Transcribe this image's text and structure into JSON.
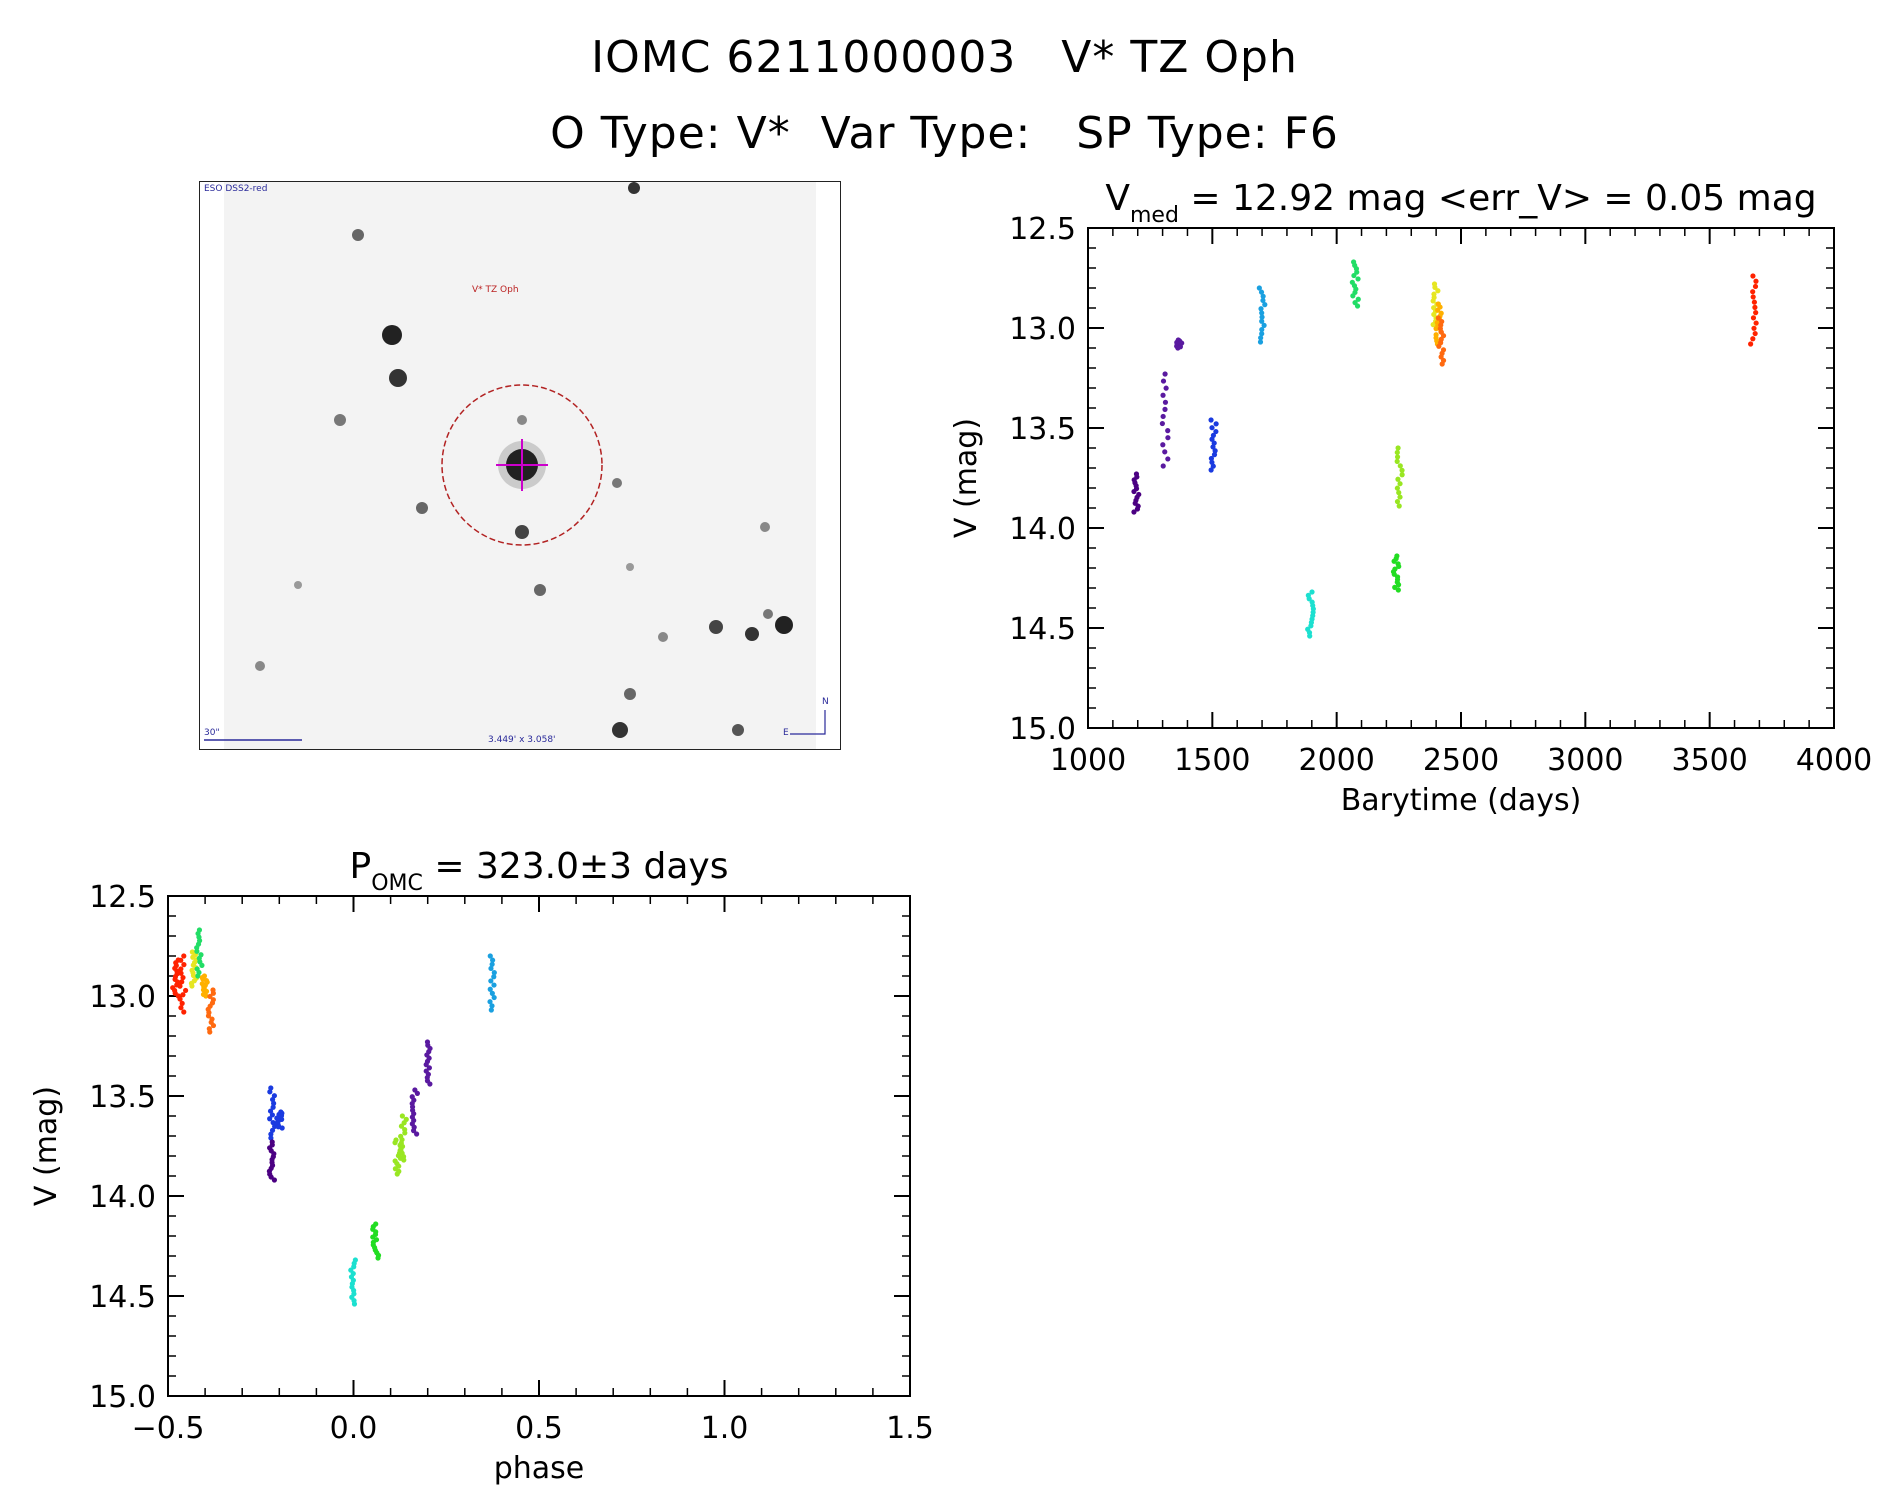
{
  "header": {
    "title_line1": "IOMC 6211000003   V* TZ Oph",
    "title_line2": "O Type: V*  Var Type:   SP Type: F6"
  },
  "image_panel": {
    "survey_label": "ESO DSS2-red",
    "target_label": "V* TZ Oph",
    "scale_label": "30\"",
    "fov_label": "3.449' x 3.058'",
    "north_label": "N",
    "east_label": "E"
  },
  "colors": {
    "axis": "#000000",
    "circle": "#b22222",
    "marker": "#cc00cc",
    "palette": [
      "#4b0082",
      "#5a1aa0",
      "#1a3be0",
      "#1aa0e0",
      "#1ce0d0",
      "#22dd66",
      "#22dd22",
      "#99e622",
      "#e6e622",
      "#ffb000",
      "#ff6a10",
      "#ff2200"
    ]
  },
  "chart_data": [
    {
      "type": "scatter",
      "title": "V",
      "title_sub": "med",
      "title_rest": " = 12.92 mag <err_V> = 0.05 mag",
      "xlabel": "Barytime (days)",
      "ylabel": "V (mag)",
      "xlim": [
        1000,
        4000
      ],
      "ylim": [
        15.0,
        12.5
      ],
      "y_inverted": true,
      "xticks": [
        "1000",
        "1500",
        "2000",
        "2500",
        "3000",
        "3500",
        "4000"
      ],
      "yticks": [
        "12.5",
        "13.0",
        "13.5",
        "14.0",
        "14.5",
        "15.0"
      ],
      "groups": [
        {
          "x": 1195,
          "ymin": 13.73,
          "ymax": 13.92,
          "color": "#4b0082"
        },
        {
          "x": 1310,
          "ymin": 13.23,
          "ymax": 13.69,
          "color": "#5a1aa0"
        },
        {
          "x": 1365,
          "ymin": 13.06,
          "ymax": 13.1,
          "color": "#5a1aa0"
        },
        {
          "x": 1505,
          "ymin": 13.46,
          "ymax": 13.71,
          "color": "#1a3be0"
        },
        {
          "x": 1700,
          "ymin": 12.8,
          "ymax": 13.07,
          "color": "#1aa0e0"
        },
        {
          "x": 1895,
          "ymin": 14.32,
          "ymax": 14.54,
          "color": "#1ce0d0"
        },
        {
          "x": 2075,
          "ymin": 12.67,
          "ymax": 12.89,
          "color": "#22dd66"
        },
        {
          "x": 2240,
          "ymin": 14.14,
          "ymax": 14.31,
          "color": "#22dd22"
        },
        {
          "x": 2255,
          "ymin": 13.6,
          "ymax": 13.89,
          "color": "#99e622"
        },
        {
          "x": 2400,
          "ymin": 12.78,
          "ymax": 13.0,
          "color": "#e6e622"
        },
        {
          "x": 2410,
          "ymin": 12.88,
          "ymax": 13.08,
          "color": "#ffb000"
        },
        {
          "x": 2420,
          "ymin": 12.95,
          "ymax": 13.18,
          "color": "#ff6a10"
        },
        {
          "x": 3675,
          "ymin": 12.74,
          "ymax": 13.08,
          "color": "#ff2200"
        }
      ]
    },
    {
      "type": "scatter",
      "title": "P",
      "title_sub": "OMC",
      "title_rest": " = 323.0±3 days",
      "xlabel": "phase",
      "ylabel": "V (mag)",
      "xlim": [
        -0.5,
        1.5
      ],
      "ylim": [
        15.0,
        12.5
      ],
      "y_inverted": true,
      "xticks": [
        "−0.5",
        "0.0",
        "0.5",
        "1.0",
        "1.5"
      ],
      "yticks": [
        "12.5",
        "13.0",
        "13.5",
        "14.0",
        "14.5",
        "15.0"
      ],
      "period_days": 323.0,
      "groups": [
        {
          "x": -0.48,
          "ymin": 12.82,
          "ymax": 13.0,
          "color": "#ff2200"
        },
        {
          "x": -0.46,
          "ymin": 12.8,
          "ymax": 13.08,
          "color": "#ff2200"
        },
        {
          "x": -0.43,
          "ymin": 12.78,
          "ymax": 12.95,
          "color": "#e6e622"
        },
        {
          "x": -0.415,
          "ymin": 12.67,
          "ymax": 12.9,
          "color": "#22dd66"
        },
        {
          "x": -0.4,
          "ymin": 12.9,
          "ymax": 13.0,
          "color": "#ffb000"
        },
        {
          "x": -0.385,
          "ymin": 12.97,
          "ymax": 13.18,
          "color": "#ff6a10"
        },
        {
          "x": -0.22,
          "ymin": 13.46,
          "ymax": 13.71,
          "color": "#1a3be0"
        },
        {
          "x": -0.22,
          "ymin": 13.73,
          "ymax": 13.92,
          "color": "#4b0082"
        },
        {
          "x": -0.2,
          "ymin": 13.58,
          "ymax": 13.66,
          "color": "#1a3be0"
        },
        {
          "x": 0.0,
          "ymin": 14.32,
          "ymax": 14.54,
          "color": "#1ce0d0"
        },
        {
          "x": 0.06,
          "ymin": 14.14,
          "ymax": 14.31,
          "color": "#22dd22"
        },
        {
          "x": 0.12,
          "ymin": 13.72,
          "ymax": 13.89,
          "color": "#99e622"
        },
        {
          "x": 0.135,
          "ymin": 13.6,
          "ymax": 13.82,
          "color": "#99e622"
        },
        {
          "x": 0.165,
          "ymin": 13.47,
          "ymax": 13.69,
          "color": "#5a1aa0"
        },
        {
          "x": 0.2,
          "ymin": 13.23,
          "ymax": 13.44,
          "color": "#5a1aa0"
        },
        {
          "x": 0.375,
          "ymin": 12.8,
          "ymax": 13.07,
          "color": "#1aa0e0"
        }
      ]
    }
  ]
}
